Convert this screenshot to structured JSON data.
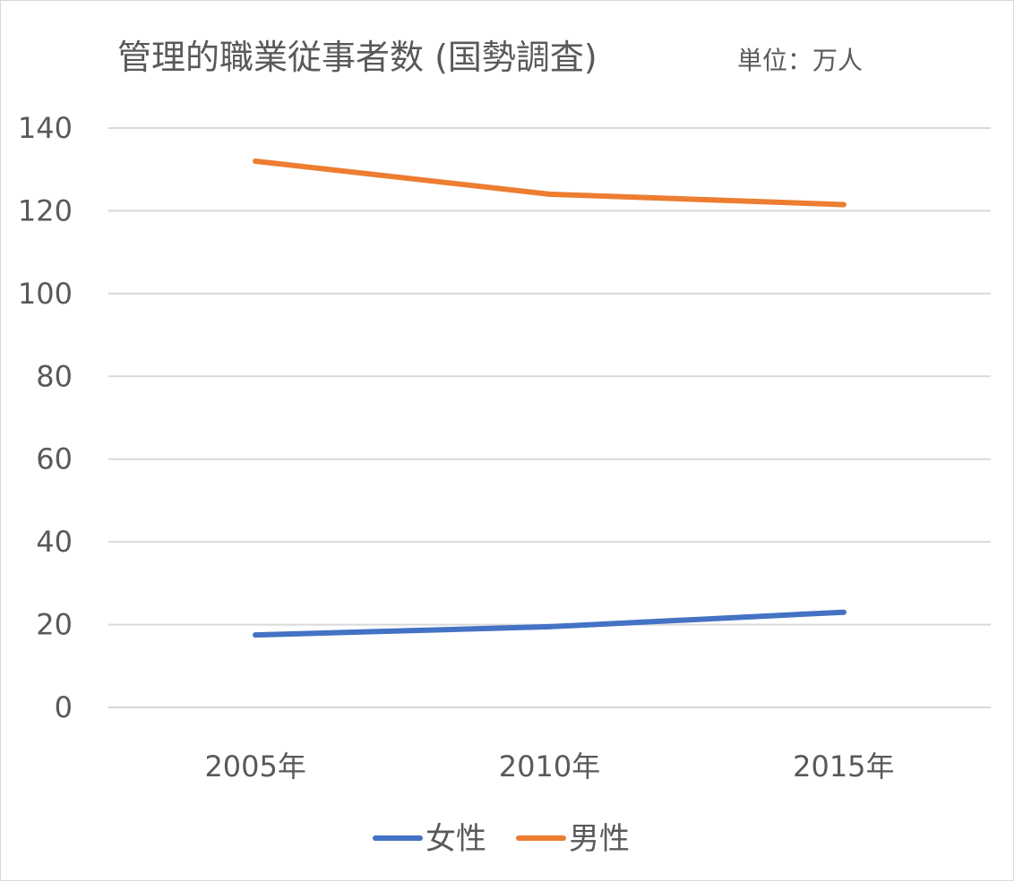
{
  "chart_data": {
    "type": "line",
    "title": "管理的職業従事者数 (国勢調査)",
    "subtitle": "単位：万人",
    "xlabel": "",
    "ylabel": "",
    "categories": [
      "2005年",
      "2010年",
      "2015年"
    ],
    "ylim": [
      0,
      140
    ],
    "yticks": [
      "0",
      "20",
      "40",
      "60",
      "80",
      "100",
      "120",
      "140"
    ],
    "grid": true,
    "legend_position": "bottom",
    "series": [
      {
        "name": "女性",
        "color": "#4472c4",
        "values": [
          17.5,
          19.5,
          23.0
        ]
      },
      {
        "name": "男性",
        "color": "#ed7d31",
        "values": [
          132.0,
          124.0,
          121.5
        ]
      }
    ]
  }
}
